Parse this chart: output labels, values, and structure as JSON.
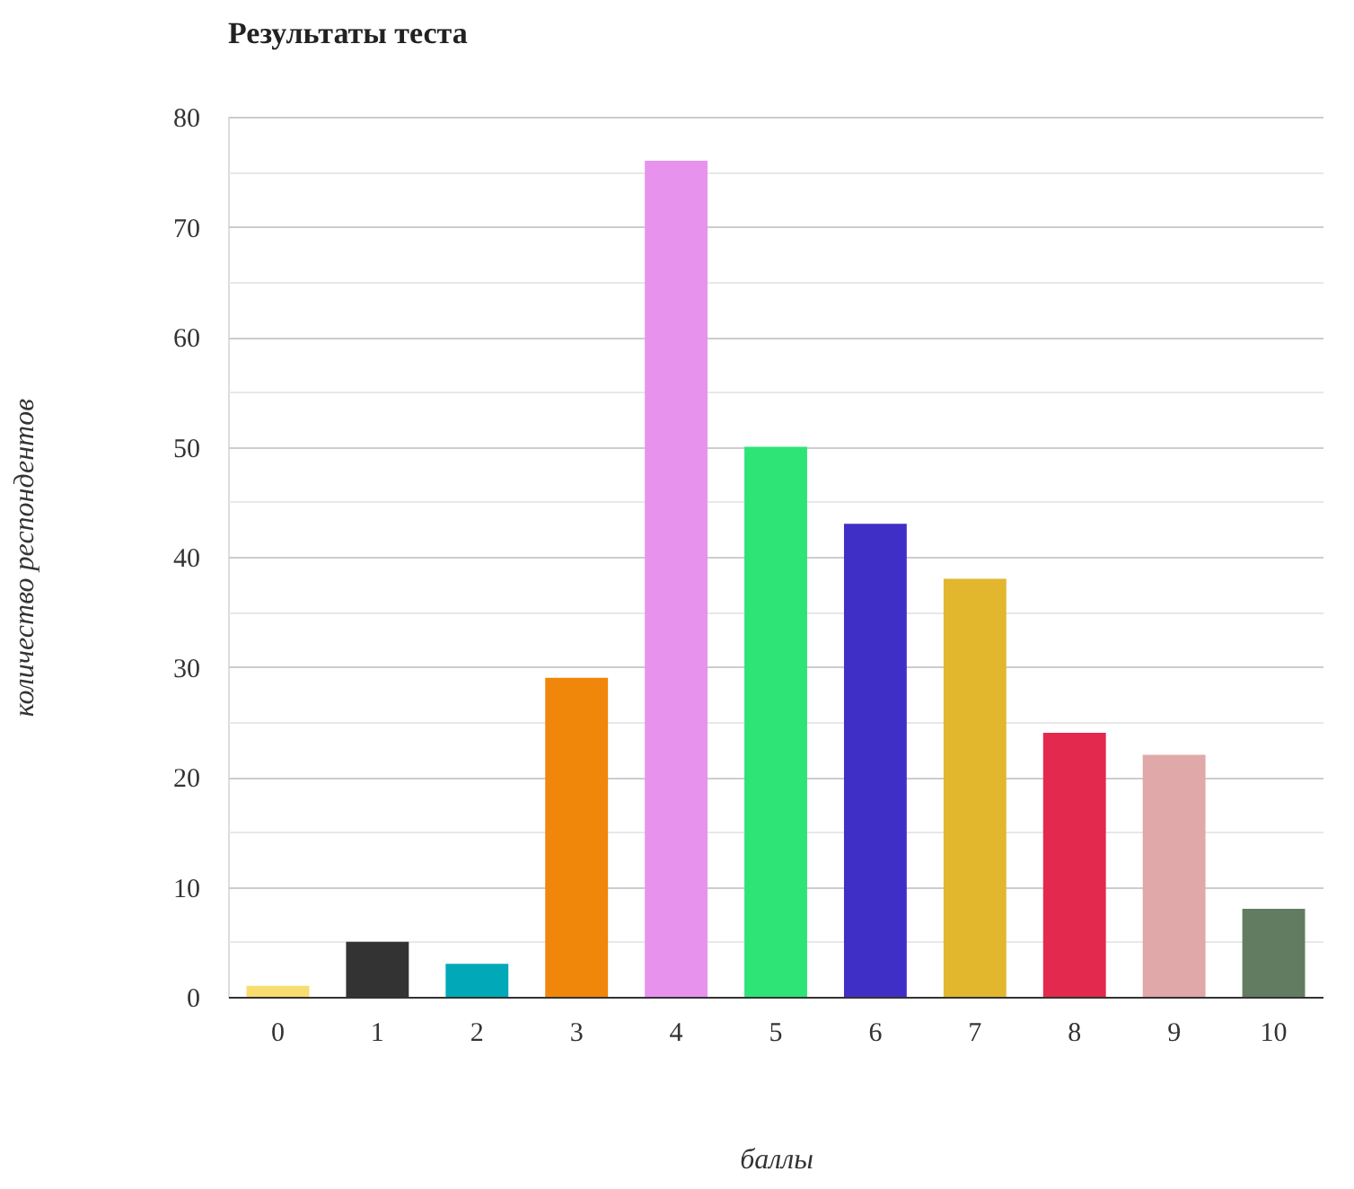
{
  "chart_data": {
    "type": "bar",
    "title": "Результаты теста",
    "xlabel": "баллы",
    "ylabel": "количество респондентов",
    "categories": [
      "0",
      "1",
      "2",
      "3",
      "4",
      "5",
      "6",
      "7",
      "8",
      "9",
      "10"
    ],
    "values": [
      1,
      5,
      3,
      29,
      76,
      50,
      43,
      38,
      24,
      22,
      8
    ],
    "colors": [
      "#f7dc6f",
      "#333333",
      "#00a8b8",
      "#f0860a",
      "#e793ee",
      "#2ee476",
      "#402fc7",
      "#e2b72e",
      "#e3294e",
      "#e0a8a8",
      "#627c62"
    ],
    "ylim": [
      0,
      80
    ],
    "yticks": [
      0,
      {
        "value": 5,
        "label": null
      },
      10,
      {
        "value": 15,
        "label": null
      },
      20,
      {
        "value": 25,
        "label": null
      },
      30,
      {
        "value": 35,
        "label": null
      },
      40,
      {
        "value": 45,
        "label": null
      },
      50,
      {
        "value": 55,
        "label": null
      },
      60,
      {
        "value": 65,
        "label": null
      },
      70,
      {
        "value": 75,
        "label": null
      },
      80
    ],
    "grid": true,
    "legend": false
  }
}
